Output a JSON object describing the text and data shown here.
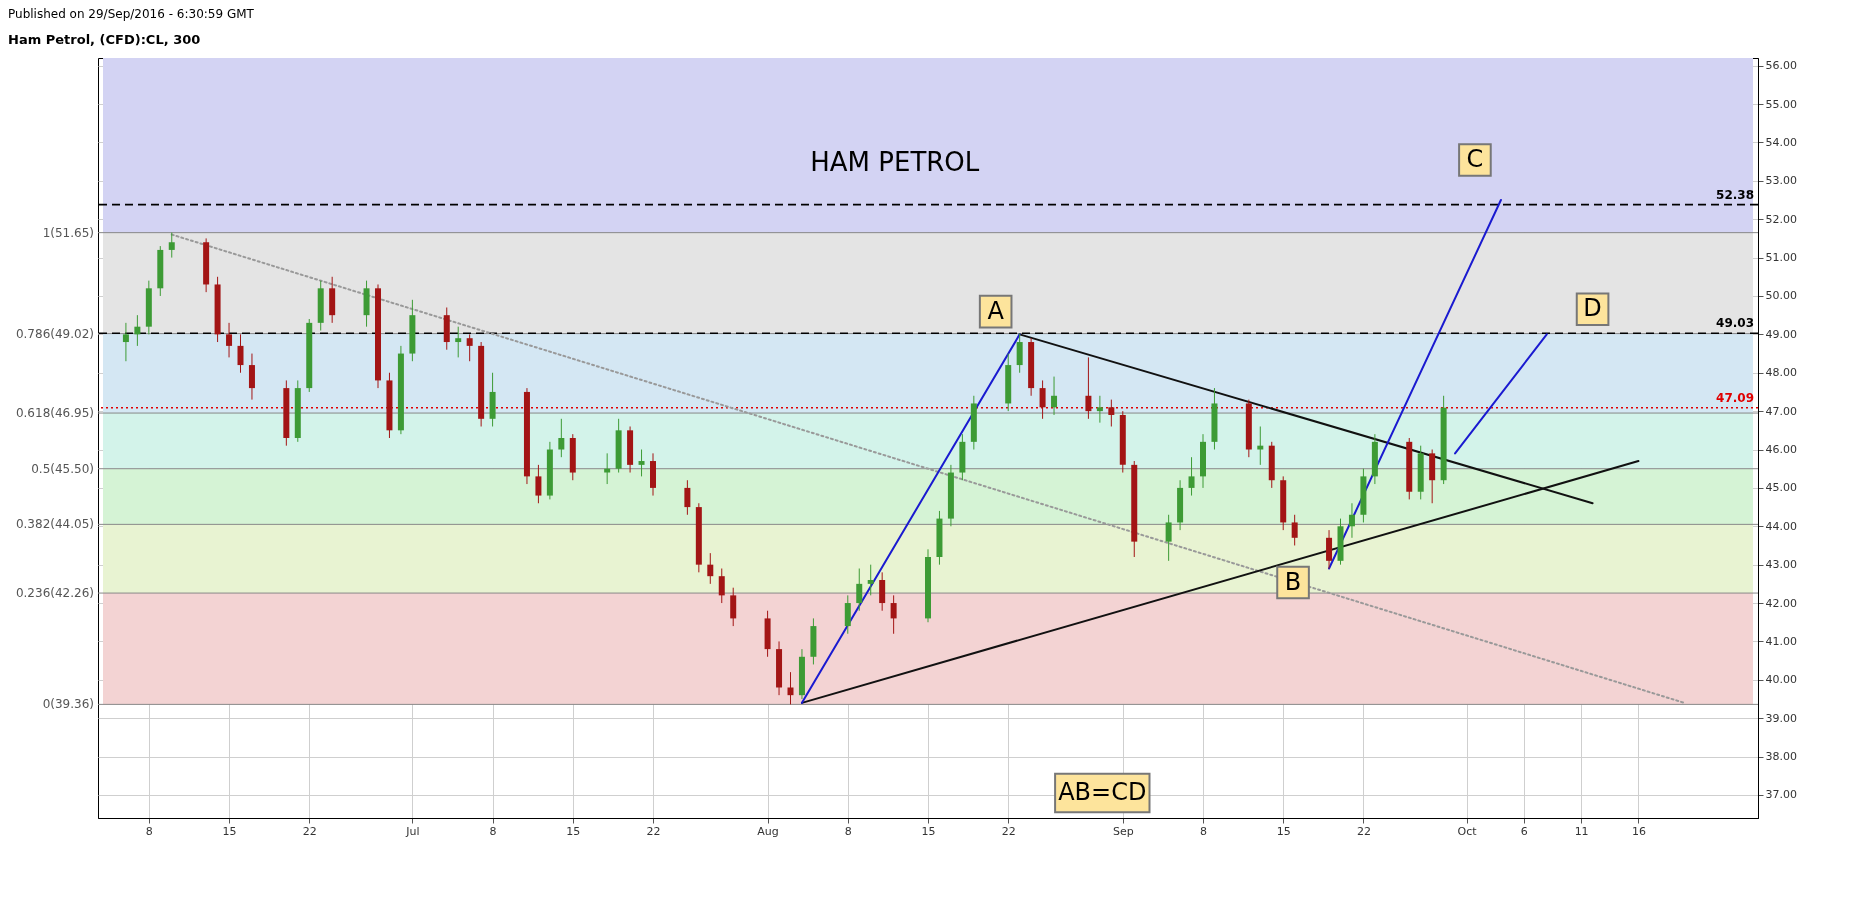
{
  "chart_data": {
    "type": "candlestick",
    "title": "Ham Petrol, (CFD):CL, 300",
    "x": [
      "2016-06-06",
      "2016-06-07",
      "2016-06-08",
      "2016-06-09",
      "2016-06-10",
      "2016-06-13",
      "2016-06-14",
      "2016-06-15",
      "2016-06-16",
      "2016-06-17",
      "2016-06-20",
      "2016-06-21",
      "2016-06-22",
      "2016-06-23",
      "2016-06-24",
      "2016-06-27",
      "2016-06-28",
      "2016-06-29",
      "2016-06-30",
      "2016-07-01",
      "2016-07-04",
      "2016-07-05",
      "2016-07-06",
      "2016-07-07",
      "2016-07-08",
      "2016-07-11",
      "2016-07-12",
      "2016-07-13",
      "2016-07-14",
      "2016-07-15",
      "2016-07-18",
      "2016-07-19",
      "2016-07-20",
      "2016-07-21",
      "2016-07-22",
      "2016-07-25",
      "2016-07-26",
      "2016-07-27",
      "2016-07-28",
      "2016-07-29",
      "2016-08-01",
      "2016-08-02",
      "2016-08-03",
      "2016-08-04",
      "2016-08-05",
      "2016-08-08",
      "2016-08-09",
      "2016-08-10",
      "2016-08-11",
      "2016-08-12",
      "2016-08-15",
      "2016-08-16",
      "2016-08-17",
      "2016-08-18",
      "2016-08-19",
      "2016-08-22",
      "2016-08-23",
      "2016-08-24",
      "2016-08-25",
      "2016-08-26",
      "2016-08-29",
      "2016-08-30",
      "2016-08-31",
      "2016-09-01",
      "2016-09-02",
      "2016-09-05",
      "2016-09-06",
      "2016-09-07",
      "2016-09-08",
      "2016-09-09",
      "2016-09-12",
      "2016-09-13",
      "2016-09-14",
      "2016-09-15",
      "2016-09-16",
      "2016-09-19",
      "2016-09-20",
      "2016-09-21",
      "2016-09-22",
      "2016-09-23",
      "2016-09-26",
      "2016-09-27",
      "2016-09-28",
      "2016-09-29"
    ],
    "ohlc": [
      [
        48.8,
        49.3,
        48.3,
        49.0
      ],
      [
        49.0,
        49.5,
        48.7,
        49.2
      ],
      [
        49.2,
        50.4,
        49.0,
        50.2
      ],
      [
        50.2,
        51.3,
        50.0,
        51.2
      ],
      [
        51.2,
        51.65,
        51.0,
        51.4
      ],
      [
        51.4,
        51.5,
        50.1,
        50.3
      ],
      [
        50.3,
        50.5,
        48.8,
        49.0
      ],
      [
        49.0,
        49.3,
        48.4,
        48.7
      ],
      [
        48.7,
        49.0,
        48.0,
        48.2
      ],
      [
        48.2,
        48.5,
        47.3,
        47.6
      ],
      [
        47.6,
        47.8,
        46.1,
        46.3
      ],
      [
        46.3,
        47.8,
        46.2,
        47.6
      ],
      [
        47.6,
        49.4,
        47.5,
        49.3
      ],
      [
        49.3,
        50.4,
        49.1,
        50.2
      ],
      [
        50.2,
        50.5,
        49.3,
        49.5
      ],
      [
        49.5,
        50.4,
        49.2,
        50.2
      ],
      [
        50.2,
        50.3,
        47.6,
        47.8
      ],
      [
        47.8,
        48.0,
        46.3,
        46.5
      ],
      [
        46.5,
        48.7,
        46.4,
        48.5
      ],
      [
        48.5,
        49.9,
        48.3,
        49.5
      ],
      [
        49.5,
        49.7,
        48.6,
        48.8
      ],
      [
        48.8,
        49.2,
        48.4,
        48.9
      ],
      [
        48.9,
        49.0,
        48.3,
        48.7
      ],
      [
        48.7,
        48.8,
        46.6,
        46.8
      ],
      [
        46.8,
        48.0,
        46.6,
        47.5
      ],
      [
        47.5,
        47.6,
        45.1,
        45.3
      ],
      [
        45.3,
        45.6,
        44.6,
        44.8
      ],
      [
        44.8,
        46.2,
        44.7,
        46.0
      ],
      [
        46.0,
        46.8,
        45.8,
        46.3
      ],
      [
        46.3,
        46.4,
        45.2,
        45.4
      ],
      [
        45.4,
        45.9,
        45.1,
        45.5
      ],
      [
        45.5,
        46.8,
        45.4,
        46.5
      ],
      [
        46.5,
        46.6,
        45.4,
        45.6
      ],
      [
        45.6,
        46.0,
        45.3,
        45.7
      ],
      [
        45.7,
        45.9,
        44.8,
        45.0
      ],
      [
        45.0,
        45.2,
        44.3,
        44.5
      ],
      [
        44.5,
        44.6,
        42.8,
        43.0
      ],
      [
        43.0,
        43.3,
        42.5,
        42.7
      ],
      [
        42.7,
        42.9,
        42.0,
        42.2
      ],
      [
        42.2,
        42.4,
        41.4,
        41.6
      ],
      [
        41.6,
        41.8,
        40.6,
        40.8
      ],
      [
        40.8,
        41.0,
        39.6,
        39.8
      ],
      [
        39.8,
        40.2,
        39.36,
        39.6
      ],
      [
        39.6,
        40.8,
        39.5,
        40.6
      ],
      [
        40.6,
        41.6,
        40.4,
        41.4
      ],
      [
        41.4,
        42.2,
        41.2,
        42.0
      ],
      [
        42.0,
        42.9,
        41.8,
        42.5
      ],
      [
        42.5,
        43.0,
        42.2,
        42.6
      ],
      [
        42.6,
        42.8,
        41.8,
        42.0
      ],
      [
        42.0,
        42.2,
        41.2,
        41.6
      ],
      [
        41.6,
        43.4,
        41.5,
        43.2
      ],
      [
        43.2,
        44.4,
        43.0,
        44.2
      ],
      [
        44.2,
        45.6,
        44.0,
        45.4
      ],
      [
        45.4,
        46.4,
        45.2,
        46.2
      ],
      [
        46.2,
        47.4,
        46.0,
        47.2
      ],
      [
        47.2,
        48.5,
        47.0,
        48.2
      ],
      [
        48.2,
        49.02,
        48.0,
        48.8
      ],
      [
        48.8,
        48.9,
        47.4,
        47.6
      ],
      [
        47.6,
        47.8,
        46.8,
        47.1
      ],
      [
        47.1,
        47.9,
        46.9,
        47.4
      ],
      [
        47.4,
        48.4,
        46.8,
        47.0
      ],
      [
        47.0,
        47.4,
        46.7,
        47.1
      ],
      [
        47.1,
        47.3,
        46.6,
        46.9
      ],
      [
        46.9,
        47.0,
        45.4,
        45.6
      ],
      [
        45.6,
        45.7,
        43.2,
        43.6
      ],
      [
        43.6,
        44.3,
        43.1,
        44.1
      ],
      [
        44.1,
        45.2,
        43.9,
        45.0
      ],
      [
        45.0,
        45.8,
        44.8,
        45.3
      ],
      [
        45.3,
        46.4,
        45.0,
        46.2
      ],
      [
        46.2,
        47.6,
        46.0,
        47.2
      ],
      [
        47.2,
        47.3,
        45.8,
        46.0
      ],
      [
        46.0,
        46.6,
        45.6,
        46.1
      ],
      [
        46.1,
        46.2,
        45.0,
        45.2
      ],
      [
        45.2,
        45.3,
        43.9,
        44.1
      ],
      [
        44.1,
        44.3,
        43.5,
        43.7
      ],
      [
        43.7,
        43.9,
        42.9,
        43.1
      ],
      [
        43.1,
        44.2,
        43.0,
        44.0
      ],
      [
        44.0,
        44.6,
        43.7,
        44.3
      ],
      [
        44.3,
        45.5,
        44.1,
        45.3
      ],
      [
        45.3,
        46.4,
        45.1,
        46.2
      ],
      [
        46.2,
        46.3,
        44.7,
        44.9
      ],
      [
        44.9,
        46.1,
        44.7,
        45.9
      ],
      [
        45.9,
        46.0,
        44.6,
        45.2
      ],
      [
        45.2,
        47.4,
        45.1,
        47.09
      ]
    ],
    "colors": [
      "#3d9b35",
      "#3d9b35",
      "#3d9b35",
      "#3d9b35",
      "#3d9b35",
      "#a31515",
      "#a31515",
      "#a31515",
      "#a31515",
      "#a31515",
      "#a31515",
      "#3d9b35",
      "#3d9b35",
      "#3d9b35",
      "#a31515",
      "#3d9b35",
      "#a31515",
      "#a31515",
      "#3d9b35",
      "#3d9b35",
      "#a31515",
      "#3d9b35",
      "#a31515",
      "#a31515",
      "#3d9b35",
      "#a31515",
      "#a31515",
      "#3d9b35",
      "#3d9b35",
      "#a31515",
      "#3d9b35",
      "#3d9b35",
      "#a31515",
      "#3d9b35",
      "#a31515",
      "#a31515",
      "#a31515",
      "#a31515",
      "#a31515",
      "#a31515",
      "#a31515",
      "#a31515",
      "#a31515",
      "#3d9b35",
      "#3d9b35",
      "#3d9b35",
      "#3d9b35",
      "#3d9b35",
      "#a31515",
      "#a31515",
      "#3d9b35",
      "#3d9b35",
      "#3d9b35",
      "#3d9b35",
      "#3d9b35",
      "#3d9b35",
      "#3d9b35",
      "#a31515",
      "#a31515",
      "#3d9b35",
      "#a31515",
      "#3d9b35",
      "#a31515",
      "#a31515",
      "#a31515",
      "#3d9b35",
      "#3d9b35",
      "#3d9b35",
      "#3d9b35",
      "#3d9b35",
      "#a31515",
      "#3d9b35",
      "#a31515",
      "#a31515",
      "#a31515",
      "#a31515",
      "#3d9b35",
      "#3d9b35",
      "#3d9b35",
      "#3d9b35",
      "#a31515",
      "#3d9b35",
      "#a31515",
      "#3d9b35"
    ],
    "series": [
      {
        "type": "line",
        "color": "#999999",
        "line_style": "dotted",
        "x": [
          "2016-06-10",
          "2016-10-20"
        ],
        "values": [
          51.6,
          39.4
        ]
      },
      {
        "type": "line",
        "color": "#111111",
        "line_style": "solid",
        "x": [
          "2016-08-23",
          "2016-10-12"
        ],
        "values": [
          49.0,
          44.6
        ]
      },
      {
        "type": "line",
        "color": "#111111",
        "line_style": "solid",
        "x": [
          "2016-08-04",
          "2016-10-16"
        ],
        "values": [
          39.4,
          45.7
        ]
      },
      {
        "type": "line",
        "color": "#1a1ad0",
        "line_style": "solid",
        "x": [
          "2016-08-04",
          "2016-08-23"
        ],
        "values": [
          39.4,
          49.0
        ]
      },
      {
        "type": "line",
        "color": "#1a1ad0",
        "line_style": "solid",
        "x": [
          "2016-09-19",
          "2016-10-04"
        ],
        "values": [
          42.9,
          52.5
        ]
      },
      {
        "type": "line",
        "color": "#1a1ad0",
        "line_style": "solid",
        "x": [
          "2016-09-30",
          "2016-10-08"
        ],
        "values": [
          45.9,
          49.0
        ]
      }
    ],
    "bands": [
      {
        "axis": "y",
        "from": 39.36,
        "to": 42.26,
        "label": "0(39.36)",
        "color": "#f3d3d3"
      },
      {
        "axis": "y",
        "from": 42.26,
        "to": 44.05,
        "label": "0.236(42.26)",
        "color": "#e8f3d2"
      },
      {
        "axis": "y",
        "from": 44.05,
        "to": 45.5,
        "label": "0.382(44.05)",
        "color": "#d5f3d5"
      },
      {
        "axis": "y",
        "from": 45.5,
        "to": 46.95,
        "label": "0.5(45.50)",
        "color": "#d3f3ea"
      },
      {
        "axis": "y",
        "from": 46.95,
        "to": 49.02,
        "label": "0.618(46.95)",
        "color": "#d4e7f3"
      },
      {
        "axis": "y",
        "from": 49.02,
        "to": 51.65,
        "label": "0.786(49.02)",
        "color": "#e4e4e4"
      },
      {
        "axis": "y",
        "from": 51.65,
        "to": 56.2,
        "label": "1(51.65)",
        "color": "#d3d3f3"
      }
    ],
    "ref_lines": [
      {
        "axis": "y",
        "value": 52.38,
        "label": "52.38",
        "color": "#000000",
        "line_style": "dashed"
      },
      {
        "axis": "y",
        "value": 49.03,
        "label": "49.03",
        "color": "#000000",
        "line_style": "dashed"
      },
      {
        "axis": "y",
        "value": 47.09,
        "label": "47.09",
        "color": "#e00000",
        "line_style": "dotted"
      }
    ],
    "annotations": [
      "Published on 29/Sep/2016 - 6:30:59 GMT",
      "HAM PETROL",
      "AB=CD",
      {
        "text": "A",
        "x": "2016-08-23",
        "y": 49.02
      },
      {
        "text": "B",
        "x": "2016-09-19",
        "y": 42.9
      },
      {
        "text": "C",
        "x": "2016-10-04",
        "y": 52.5
      },
      {
        "text": "D",
        "x": "2016-10-12",
        "y": 49.03
      }
    ],
    "xlim": [
      "2016-06-04",
      "2016-10-26"
    ],
    "xticks": [
      {
        "value": "2016-06-08",
        "label": "8"
      },
      {
        "value": "2016-06-15",
        "label": "15"
      },
      {
        "value": "2016-06-22",
        "label": "22"
      },
      {
        "value": "2016-07-01",
        "label": "Jul"
      },
      {
        "value": "2016-07-08",
        "label": "8"
      },
      {
        "value": "2016-07-15",
        "label": "15"
      },
      {
        "value": "2016-07-22",
        "label": "22"
      },
      {
        "value": "2016-08-01",
        "label": "Aug"
      },
      {
        "value": "2016-08-08",
        "label": "8"
      },
      {
        "value": "2016-08-15",
        "label": "15"
      },
      {
        "value": "2016-08-22",
        "label": "22"
      },
      {
        "value": "2016-09-01",
        "label": "Sep"
      },
      {
        "value": "2016-09-08",
        "label": "8"
      },
      {
        "value": "2016-09-15",
        "label": "15"
      },
      {
        "value": "2016-09-22",
        "label": "22"
      },
      {
        "value": "2016-10-01",
        "label": "Oct"
      },
      {
        "value": "2016-10-06",
        "label": "6"
      },
      {
        "value": "2016-10-11",
        "label": "11"
      },
      {
        "value": "2016-10-16",
        "label": "16"
      }
    ],
    "ylim": [
      36.4,
      56.2
    ],
    "yticks": [
      {
        "value": 37,
        "label": "37.00"
      },
      {
        "value": 38,
        "label": "38.00"
      },
      {
        "value": 39,
        "label": "39.00"
      },
      {
        "value": 40,
        "label": "40.00"
      },
      {
        "value": 41,
        "label": "41.00"
      },
      {
        "value": 42,
        "label": "42.00"
      },
      {
        "value": 43,
        "label": "43.00"
      },
      {
        "value": 44,
        "label": "44.00"
      },
      {
        "value": 45,
        "label": "45.00"
      },
      {
        "value": 46,
        "label": "46.00"
      },
      {
        "value": 47,
        "label": "47.00"
      },
      {
        "value": 48,
        "label": "48.00"
      },
      {
        "value": 49,
        "label": "49.00"
      },
      {
        "value": 50,
        "label": "50.00"
      },
      {
        "value": 51,
        "label": "51.00"
      },
      {
        "value": 52,
        "label": "52.00"
      },
      {
        "value": 53,
        "label": "53.00"
      },
      {
        "value": 54,
        "label": "54.00"
      },
      {
        "value": 55,
        "label": "55.00"
      },
      {
        "value": 56,
        "label": "56.00"
      }
    ],
    "grid": true
  }
}
